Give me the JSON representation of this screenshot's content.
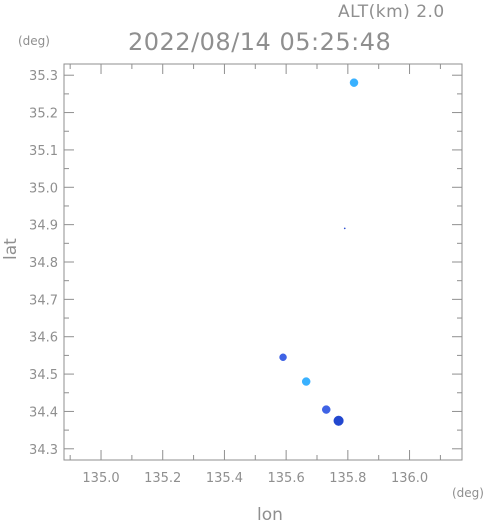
{
  "chart_data": {
    "type": "scatter",
    "title": "2022/08/14 05:25:48",
    "subtitle": "ALT(km) 2.0",
    "xlabel": "lon",
    "ylabel": "lat",
    "x_unit": "(deg)",
    "y_unit": "(deg)",
    "xlim": [
      134.88,
      136.17
    ],
    "ylim": [
      34.27,
      35.33
    ],
    "x_ticks": [
      135.0,
      135.2,
      135.4,
      135.6,
      135.8,
      136.0
    ],
    "x_tick_labels": [
      "135.0",
      "135.2",
      "135.4",
      "135.6",
      "135.8",
      "136.0"
    ],
    "y_ticks": [
      34.3,
      34.4,
      34.5,
      34.6,
      34.7,
      34.8,
      34.9,
      35.0,
      35.1,
      35.2,
      35.3
    ],
    "y_tick_labels": [
      "34.3",
      "34.4",
      "34.5",
      "34.6",
      "34.7",
      "34.8",
      "34.9",
      "35.0",
      "35.1",
      "35.2",
      "35.3"
    ],
    "grid": false,
    "legend": "none",
    "colors": {
      "frame": "#8f8f8f",
      "text": "#8f8f8f",
      "blue": "#3f63e5",
      "lightblue": "#39b1ff",
      "darkblue": "#2247cf"
    },
    "points": [
      {
        "x": 135.82,
        "y": 35.28,
        "color": "#39b1ff",
        "size": 4.0
      },
      {
        "x": 135.79,
        "y": 34.89,
        "color": "#2247cf",
        "size": 0.6
      },
      {
        "x": 135.59,
        "y": 34.545,
        "color": "#3f63e5",
        "size": 3.5
      },
      {
        "x": 135.665,
        "y": 34.48,
        "color": "#39b1ff",
        "size": 4.0
      },
      {
        "x": 135.73,
        "y": 34.405,
        "color": "#3f63e5",
        "size": 4.0
      },
      {
        "x": 135.77,
        "y": 34.375,
        "color": "#2247cf",
        "size": 4.8
      }
    ]
  }
}
